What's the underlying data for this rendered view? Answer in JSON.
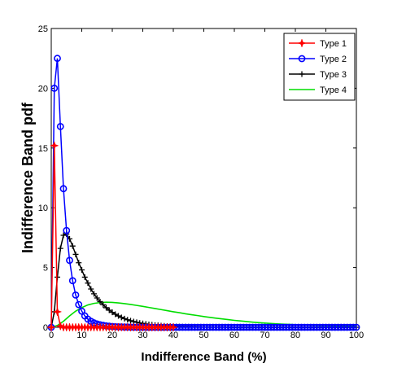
{
  "chart_data": {
    "type": "line",
    "xlabel": "Indifference Band (%)",
    "ylabel": "Indifference Band pdf",
    "xlim": [
      0,
      100
    ],
    "ylim": [
      0,
      25
    ],
    "xticks": [
      0,
      10,
      20,
      30,
      40,
      50,
      60,
      70,
      80,
      90,
      100
    ],
    "yticks": [
      0,
      5,
      10,
      15,
      20,
      25
    ],
    "grid": false,
    "legend_position": "top-right",
    "series": [
      {
        "name": "Type 1",
        "color": "#ff0000",
        "marker": "star",
        "points": [
          [
            0,
            0
          ],
          [
            1,
            15.2
          ],
          [
            2,
            1.3
          ],
          [
            3,
            0.1
          ],
          [
            4,
            0
          ],
          [
            5,
            0
          ],
          [
            6,
            0
          ],
          [
            7,
            0
          ],
          [
            8,
            0
          ],
          [
            9,
            0
          ],
          [
            10,
            0
          ],
          [
            11,
            0
          ],
          [
            12,
            0
          ],
          [
            13,
            0
          ],
          [
            14,
            0
          ],
          [
            15,
            0
          ],
          [
            16,
            0
          ],
          [
            17,
            0
          ],
          [
            18,
            0
          ],
          [
            19,
            0
          ],
          [
            20,
            0
          ],
          [
            21,
            0
          ],
          [
            22,
            0
          ],
          [
            23,
            0
          ],
          [
            24,
            0
          ],
          [
            25,
            0
          ],
          [
            26,
            0
          ],
          [
            27,
            0
          ],
          [
            28,
            0
          ],
          [
            29,
            0
          ],
          [
            30,
            0
          ],
          [
            31,
            0
          ],
          [
            32,
            0
          ],
          [
            33,
            0
          ],
          [
            34,
            0
          ],
          [
            35,
            0
          ],
          [
            36,
            0
          ],
          [
            37,
            0
          ],
          [
            38,
            0
          ],
          [
            39,
            0
          ],
          [
            40,
            0
          ]
        ]
      },
      {
        "name": "Type 2",
        "color": "#0000ff",
        "marker": "circle",
        "points": [
          [
            0,
            0
          ],
          [
            1,
            20
          ],
          [
            2,
            22.5
          ],
          [
            3,
            16.8
          ],
          [
            4,
            11.6
          ],
          [
            5,
            8.1
          ],
          [
            6,
            5.6
          ],
          [
            7,
            3.9
          ],
          [
            8,
            2.7
          ],
          [
            9,
            1.9
          ],
          [
            10,
            1.35
          ],
          [
            11,
            0.95
          ],
          [
            12,
            0.68
          ],
          [
            13,
            0.5
          ],
          [
            14,
            0.37
          ],
          [
            15,
            0.28
          ],
          [
            16,
            0.21
          ],
          [
            17,
            0.16
          ],
          [
            18,
            0.12
          ],
          [
            19,
            0.09
          ],
          [
            20,
            0.07
          ],
          [
            21,
            0.05
          ],
          [
            22,
            0.04
          ],
          [
            23,
            0.03
          ],
          [
            24,
            0.02
          ],
          [
            25,
            0.02
          ],
          [
            26,
            0.01
          ],
          [
            27,
            0.01
          ],
          [
            28,
            0.01
          ],
          [
            29,
            0
          ],
          [
            30,
            0
          ],
          [
            31,
            0
          ],
          [
            32,
            0
          ],
          [
            33,
            0
          ],
          [
            34,
            0
          ],
          [
            35,
            0
          ],
          [
            36,
            0
          ],
          [
            37,
            0
          ],
          [
            38,
            0
          ],
          [
            39,
            0
          ],
          [
            40,
            0
          ],
          [
            41,
            0
          ],
          [
            42,
            0
          ],
          [
            43,
            0
          ],
          [
            44,
            0
          ],
          [
            45,
            0
          ],
          [
            46,
            0
          ],
          [
            47,
            0
          ],
          [
            48,
            0
          ],
          [
            49,
            0
          ],
          [
            50,
            0
          ],
          [
            51,
            0
          ],
          [
            52,
            0
          ],
          [
            53,
            0
          ],
          [
            54,
            0
          ],
          [
            55,
            0
          ],
          [
            56,
            0
          ],
          [
            57,
            0
          ],
          [
            58,
            0
          ],
          [
            59,
            0
          ],
          [
            60,
            0
          ],
          [
            61,
            0
          ],
          [
            62,
            0
          ],
          [
            63,
            0
          ],
          [
            64,
            0
          ],
          [
            65,
            0
          ],
          [
            66,
            0
          ],
          [
            67,
            0
          ],
          [
            68,
            0
          ],
          [
            69,
            0
          ],
          [
            70,
            0
          ],
          [
            71,
            0
          ],
          [
            72,
            0
          ],
          [
            73,
            0
          ],
          [
            74,
            0
          ],
          [
            75,
            0
          ],
          [
            76,
            0
          ],
          [
            77,
            0
          ],
          [
            78,
            0
          ],
          [
            79,
            0
          ],
          [
            80,
            0
          ],
          [
            81,
            0
          ],
          [
            82,
            0
          ],
          [
            83,
            0
          ],
          [
            84,
            0
          ],
          [
            85,
            0
          ],
          [
            86,
            0
          ],
          [
            87,
            0
          ],
          [
            88,
            0
          ],
          [
            89,
            0
          ],
          [
            90,
            0
          ],
          [
            91,
            0
          ],
          [
            92,
            0
          ],
          [
            93,
            0
          ],
          [
            94,
            0
          ],
          [
            95,
            0
          ],
          [
            96,
            0
          ],
          [
            97,
            0
          ],
          [
            98,
            0
          ],
          [
            99,
            0
          ],
          [
            100,
            0
          ]
        ]
      },
      {
        "name": "Type 3",
        "color": "#000000",
        "marker": "plus",
        "points": [
          [
            0,
            0
          ],
          [
            1,
            1.3
          ],
          [
            2,
            4.2
          ],
          [
            3,
            6.6
          ],
          [
            4,
            7.7
          ],
          [
            5,
            7.8
          ],
          [
            6,
            7.4
          ],
          [
            7,
            6.8
          ],
          [
            8,
            6.1
          ],
          [
            9,
            5.4
          ],
          [
            10,
            4.8
          ],
          [
            11,
            4.2
          ],
          [
            12,
            3.7
          ],
          [
            13,
            3.2
          ],
          [
            14,
            2.8
          ],
          [
            15,
            2.45
          ],
          [
            16,
            2.15
          ],
          [
            17,
            1.88
          ],
          [
            18,
            1.64
          ],
          [
            19,
            1.43
          ],
          [
            20,
            1.25
          ],
          [
            21,
            1.09
          ],
          [
            22,
            0.95
          ],
          [
            23,
            0.83
          ],
          [
            24,
            0.72
          ],
          [
            25,
            0.63
          ],
          [
            26,
            0.55
          ],
          [
            27,
            0.48
          ],
          [
            28,
            0.42
          ],
          [
            29,
            0.36
          ],
          [
            30,
            0.32
          ],
          [
            31,
            0.28
          ],
          [
            32,
            0.24
          ],
          [
            33,
            0.21
          ],
          [
            34,
            0.18
          ],
          [
            35,
            0.16
          ],
          [
            36,
            0.14
          ],
          [
            37,
            0.12
          ],
          [
            38,
            0.1
          ],
          [
            39,
            0.09
          ],
          [
            40,
            0.08
          ],
          [
            41,
            0.07
          ],
          [
            42,
            0.06
          ],
          [
            43,
            0.05
          ],
          [
            44,
            0.05
          ],
          [
            45,
            0.04
          ],
          [
            46,
            0.03
          ],
          [
            47,
            0.03
          ],
          [
            48,
            0.03
          ],
          [
            49,
            0.02
          ],
          [
            50,
            0.02
          ],
          [
            51,
            0.02
          ],
          [
            52,
            0.01
          ],
          [
            53,
            0.01
          ],
          [
            54,
            0.01
          ],
          [
            55,
            0.01
          ],
          [
            56,
            0.01
          ],
          [
            57,
            0.01
          ],
          [
            58,
            0
          ],
          [
            59,
            0
          ],
          [
            60,
            0
          ],
          [
            61,
            0
          ],
          [
            62,
            0
          ],
          [
            63,
            0
          ],
          [
            64,
            0
          ],
          [
            65,
            0
          ],
          [
            66,
            0
          ],
          [
            67,
            0
          ],
          [
            68,
            0
          ],
          [
            69,
            0
          ],
          [
            70,
            0
          ],
          [
            71,
            0
          ],
          [
            72,
            0
          ],
          [
            73,
            0
          ],
          [
            74,
            0
          ],
          [
            75,
            0
          ],
          [
            76,
            0
          ],
          [
            77,
            0
          ],
          [
            78,
            0
          ],
          [
            79,
            0
          ],
          [
            80,
            0
          ],
          [
            81,
            0
          ],
          [
            82,
            0
          ],
          [
            83,
            0
          ],
          [
            84,
            0
          ],
          [
            85,
            0
          ],
          [
            86,
            0
          ],
          [
            87,
            0
          ],
          [
            88,
            0
          ],
          [
            89,
            0
          ],
          [
            90,
            0
          ],
          [
            91,
            0
          ],
          [
            92,
            0
          ],
          [
            93,
            0
          ],
          [
            94,
            0
          ],
          [
            95,
            0
          ],
          [
            96,
            0
          ],
          [
            97,
            0
          ],
          [
            98,
            0
          ],
          [
            99,
            0
          ],
          [
            100,
            0
          ]
        ]
      },
      {
        "name": "Type 4",
        "color": "#00dd00",
        "marker": "none",
        "points": [
          [
            0,
            0
          ],
          [
            2,
            0.15
          ],
          [
            4,
            0.5
          ],
          [
            6,
            0.95
          ],
          [
            8,
            1.35
          ],
          [
            10,
            1.65
          ],
          [
            12,
            1.87
          ],
          [
            14,
            2.0
          ],
          [
            16,
            2.07
          ],
          [
            18,
            2.1
          ],
          [
            20,
            2.08
          ],
          [
            22,
            2.04
          ],
          [
            24,
            1.98
          ],
          [
            26,
            1.91
          ],
          [
            28,
            1.83
          ],
          [
            30,
            1.75
          ],
          [
            32,
            1.66
          ],
          [
            34,
            1.57
          ],
          [
            36,
            1.48
          ],
          [
            38,
            1.39
          ],
          [
            40,
            1.3
          ],
          [
            42,
            1.22
          ],
          [
            44,
            1.13
          ],
          [
            46,
            1.05
          ],
          [
            48,
            0.98
          ],
          [
            50,
            0.9
          ],
          [
            52,
            0.83
          ],
          [
            54,
            0.76
          ],
          [
            56,
            0.7
          ],
          [
            58,
            0.64
          ],
          [
            60,
            0.58
          ],
          [
            62,
            0.53
          ],
          [
            64,
            0.48
          ],
          [
            66,
            0.43
          ],
          [
            68,
            0.39
          ],
          [
            70,
            0.35
          ],
          [
            72,
            0.32
          ],
          [
            74,
            0.29
          ],
          [
            76,
            0.26
          ],
          [
            78,
            0.24
          ],
          [
            80,
            0.22
          ],
          [
            82,
            0.2
          ],
          [
            84,
            0.18
          ],
          [
            86,
            0.16
          ],
          [
            88,
            0.14
          ],
          [
            90,
            0.13
          ],
          [
            92,
            0.12
          ],
          [
            94,
            0.1
          ],
          [
            96,
            0.09
          ],
          [
            98,
            0.08
          ],
          [
            100,
            0.07
          ]
        ]
      }
    ]
  }
}
